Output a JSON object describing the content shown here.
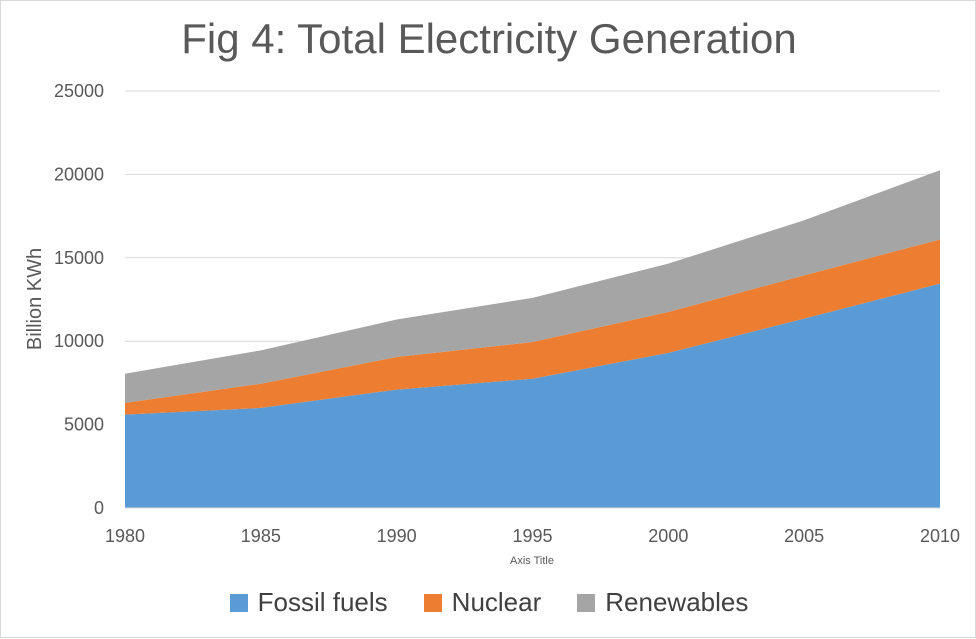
{
  "chart_data": {
    "type": "area",
    "stacked": true,
    "title": "Fig 4: Total Electricity Generation",
    "xlabel": "Axis Title",
    "ylabel": "Billion KWh",
    "x": [
      1980,
      1985,
      1990,
      1995,
      2000,
      2005,
      2010
    ],
    "x_tick_labels": [
      "1980",
      "1985",
      "1990",
      "1995",
      "2000",
      "2005",
      "2010"
    ],
    "y_tick_labels": [
      "0",
      "5000",
      "10000",
      "15000",
      "20000",
      "25000"
    ],
    "y_ticks": [
      0,
      5000,
      10000,
      15000,
      20000,
      25000
    ],
    "ylim": [
      0,
      25000
    ],
    "grid": true,
    "legend_position": "bottom",
    "series": [
      {
        "name": "Fossil fuels",
        "color": "#5b9bd5",
        "values": [
          5600,
          6000,
          7100,
          7750,
          9300,
          11350,
          13450
        ]
      },
      {
        "name": "Nuclear",
        "color": "#ed7d31",
        "values": [
          700,
          1450,
          1950,
          2200,
          2450,
          2600,
          2650
        ]
      },
      {
        "name": "Renewables",
        "color": "#a5a5a5",
        "values": [
          1750,
          2000,
          2250,
          2650,
          2900,
          3300,
          4150
        ]
      }
    ]
  }
}
